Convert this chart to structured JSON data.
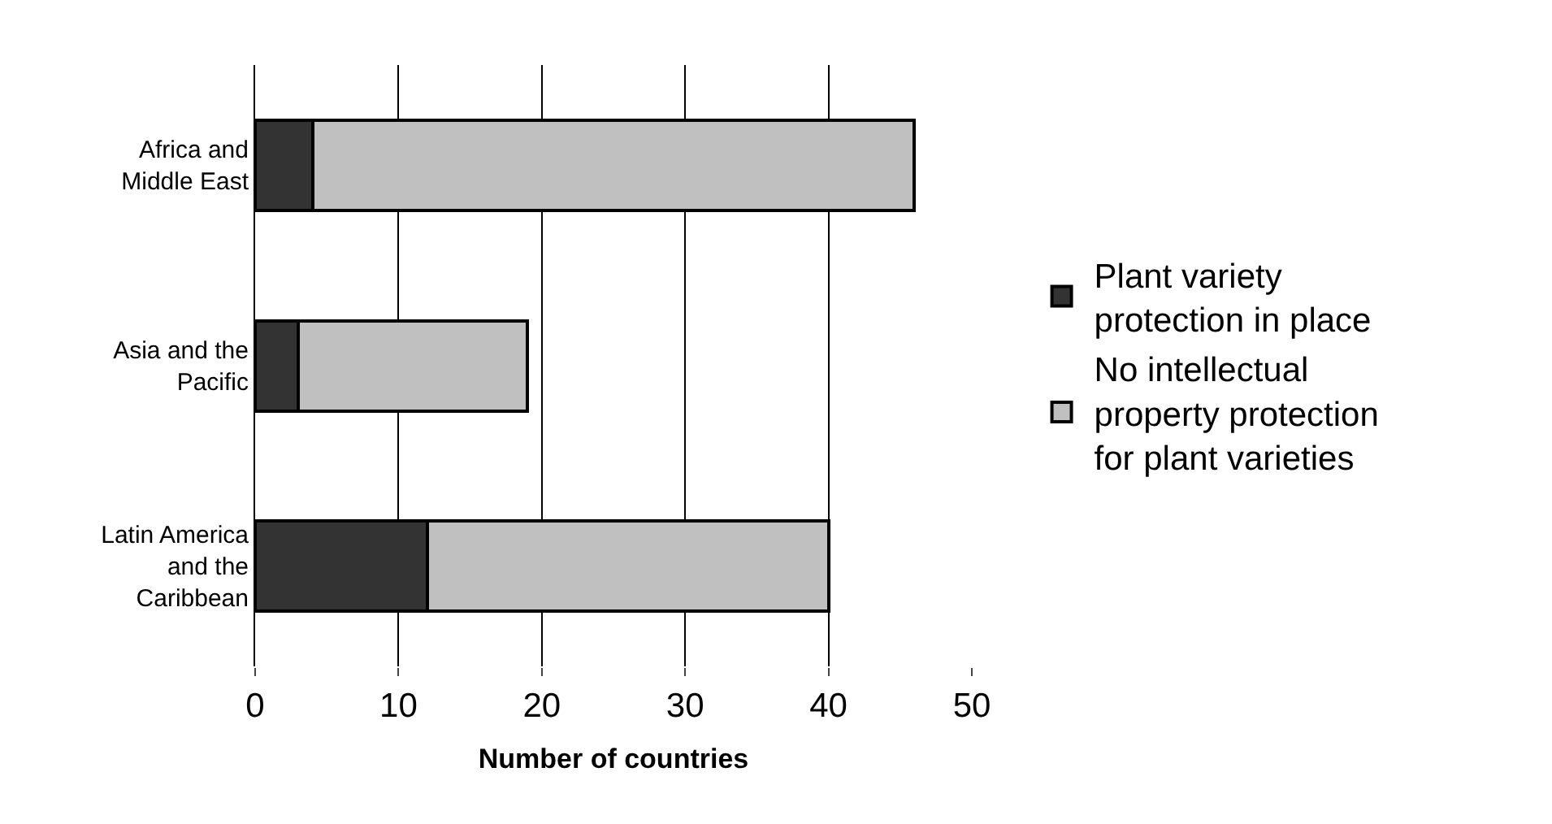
{
  "chart_data": {
    "type": "bar",
    "orientation": "horizontal",
    "stacked": true,
    "xlabel": "Number of countries",
    "categories": [
      "Africa and Middle East",
      "Asia and the Pacific",
      "Latin America and the Caribbean"
    ],
    "series": [
      {
        "name": "Plant variety protection in place",
        "color": "#333333",
        "values": [
          4,
          3,
          12
        ]
      },
      {
        "name": "No intellectual property protection for plant varieties",
        "color": "#c0c0c0",
        "values": [
          42,
          16,
          28
        ]
      }
    ],
    "xlim": [
      0,
      50
    ],
    "xticks": [
      0,
      10,
      20,
      30,
      40,
      50
    ],
    "grid": "x",
    "legend": "right"
  }
}
